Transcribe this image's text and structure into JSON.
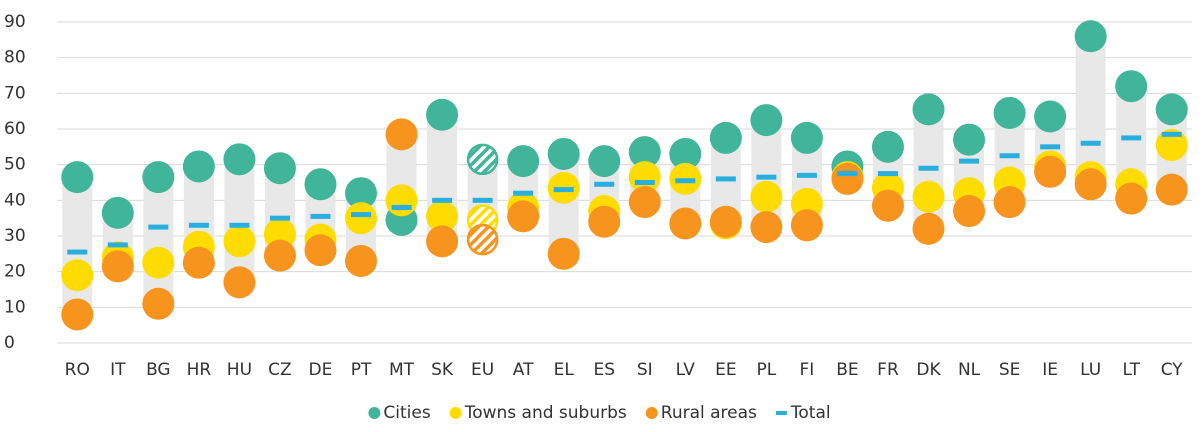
{
  "chart_data": {
    "type": "dot",
    "categories": [
      "RO",
      "IT",
      "BG",
      "HR",
      "HU",
      "CZ",
      "DE",
      "PT",
      "MT",
      "SK",
      "EU",
      "AT",
      "EL",
      "ES",
      "SI",
      "LV",
      "EE",
      "PL",
      "FI",
      "BE",
      "FR",
      "DK",
      "NL",
      "SE",
      "IE",
      "LU",
      "LT",
      "CY"
    ],
    "series": [
      {
        "name": "Cities",
        "color": "#40b59a",
        "marker": "circle",
        "values": [
          46.5,
          36.5,
          46.5,
          49.5,
          51.5,
          49,
          44.5,
          42,
          34.5,
          64,
          51.5,
          51,
          53,
          51,
          53.5,
          53,
          57.5,
          62.5,
          57.5,
          49.5,
          55,
          65.5,
          57,
          64.5,
          63.5,
          86,
          72,
          65.5
        ]
      },
      {
        "name": "Towns and suburbs",
        "color": "#ffdc00",
        "marker": "circle",
        "values": [
          19,
          24,
          22.5,
          27,
          28.5,
          30.5,
          29,
          35,
          40,
          35.5,
          34.5,
          38,
          43.5,
          37,
          46.5,
          46,
          33.5,
          41,
          39,
          46.5,
          43.5,
          41,
          42,
          45,
          49.5,
          46.5,
          44.5,
          55.5
        ]
      },
      {
        "name": "Rural areas",
        "color": "#f7941d",
        "marker": "circle",
        "values": [
          8,
          21.5,
          11,
          22.5,
          17,
          24.5,
          26,
          23,
          58.5,
          28.5,
          29,
          35.5,
          25,
          34,
          39.5,
          33.5,
          34,
          32.5,
          33,
          46,
          38.5,
          32,
          37,
          39.5,
          48,
          44.5,
          40.5,
          43
        ]
      },
      {
        "name": "Total",
        "color": "#29aee0",
        "marker": "dash",
        "values": [
          25.5,
          27.5,
          32.5,
          33,
          33,
          35,
          35.5,
          36,
          38,
          40,
          40,
          42,
          43,
          44.5,
          45,
          45.5,
          46,
          46.5,
          47,
          47.5,
          47.5,
          49,
          51,
          52.5,
          55,
          56,
          57.5,
          58.5
        ]
      }
    ],
    "hatched_category": "EU",
    "range_bar_color": "#e8e8e8",
    "ylim": [
      0,
      90
    ],
    "yticks": [
      0,
      10,
      20,
      30,
      40,
      50,
      60,
      70,
      80,
      90
    ],
    "grid": true,
    "legend": "bottom"
  }
}
